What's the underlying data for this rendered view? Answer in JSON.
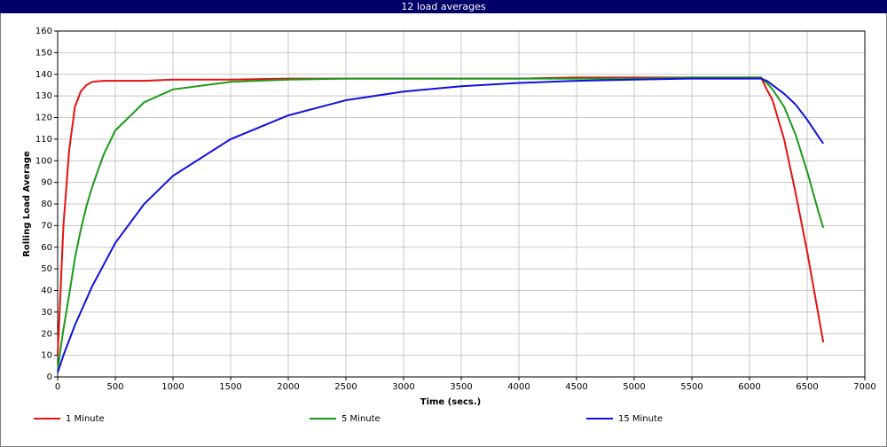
{
  "chart_data": {
    "type": "line",
    "title": "12 load averages",
    "x_label": "Time (secs.)",
    "y_label": "Rolling Load Average",
    "x": [
      0,
      25,
      50,
      100,
      150,
      200,
      250,
      300,
      400,
      500,
      750,
      1000,
      1500,
      2000,
      2500,
      3000,
      3500,
      4000,
      4500,
      5000,
      5500,
      6000,
      6100,
      6150,
      6200,
      6300,
      6400,
      6500,
      6600,
      6640
    ],
    "series": [
      {
        "name": "1 Minute",
        "color": "#e81010",
        "values": [
          10,
          40,
          70,
          105,
          125,
          132,
          135,
          136.5,
          137,
          137,
          137,
          137.5,
          137.5,
          138,
          138,
          138,
          138,
          138,
          138.5,
          138.5,
          138.5,
          138.5,
          138.5,
          133,
          128,
          110,
          85,
          58,
          28,
          16
        ]
      },
      {
        "name": "5 Minute",
        "color": "#1a9a1a",
        "values": [
          3,
          13,
          22,
          38,
          55,
          68,
          79,
          88,
          103,
          114,
          127,
          133,
          136.5,
          137.5,
          138,
          138,
          138,
          138,
          138,
          138,
          138.5,
          138.5,
          138.5,
          136,
          133,
          125,
          112,
          95,
          76,
          69
        ]
      },
      {
        "name": "15 Minute",
        "color": "#1010dd",
        "values": [
          2,
          6,
          10,
          17,
          24,
          30,
          36,
          42,
          52,
          62,
          80,
          93,
          110,
          121,
          128,
          132,
          134.5,
          136,
          137,
          137.5,
          138,
          138,
          138,
          137,
          135,
          131,
          126,
          119,
          111,
          108
        ]
      }
    ],
    "xlim": [
      0,
      7000
    ],
    "xticks": [
      0,
      500,
      1000,
      1500,
      2000,
      2500,
      3000,
      3500,
      4000,
      4500,
      5000,
      5500,
      6000,
      6500,
      7000
    ],
    "ylim": [
      0,
      160
    ],
    "yticks": [
      0,
      10,
      20,
      30,
      40,
      50,
      60,
      70,
      80,
      90,
      100,
      110,
      120,
      130,
      140,
      150,
      160
    ],
    "grid": true,
    "legend": "bottom"
  }
}
